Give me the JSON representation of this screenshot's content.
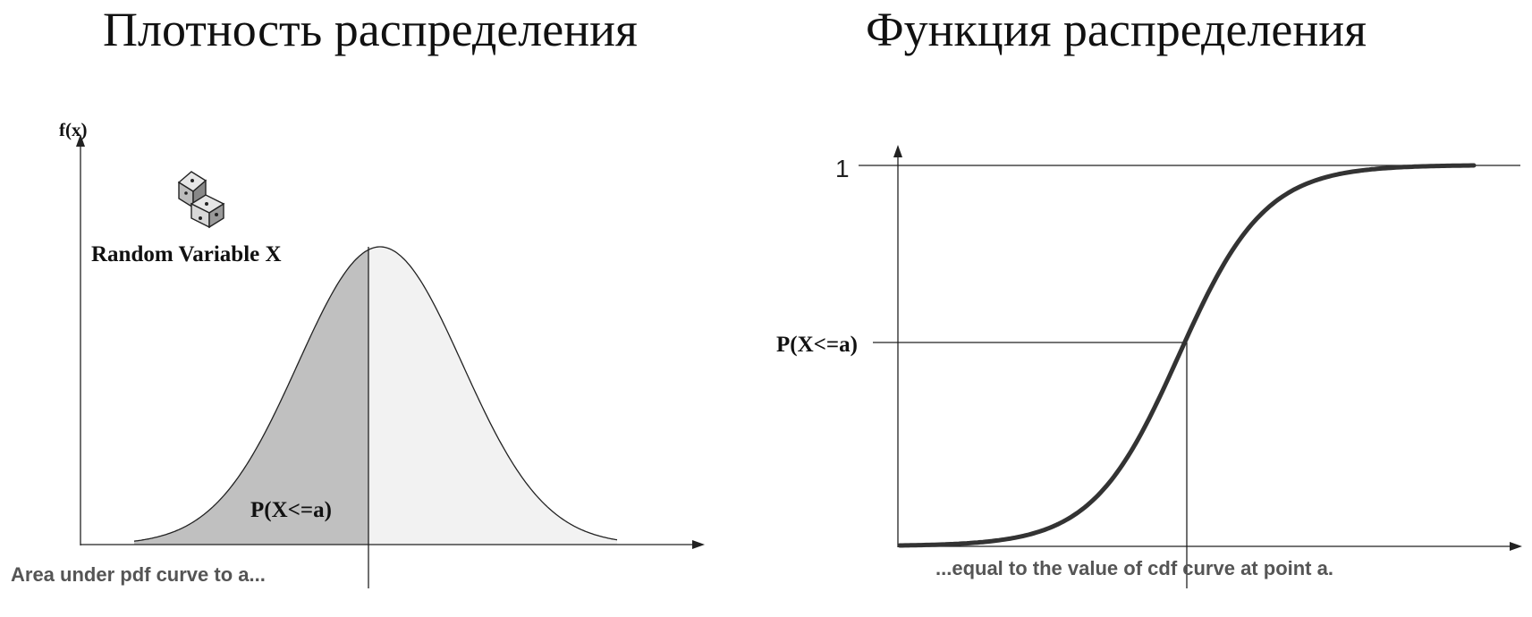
{
  "titles": {
    "left": "Плотность распределения",
    "right": "Функция распределения"
  },
  "pdf_panel": {
    "y_axis_label": "f(x)",
    "variable_label": "Random Variable X",
    "area_label": "P(X<=a)",
    "caption": "Area under pdf curve to a...",
    "icon": "dice-icon",
    "colors": {
      "shaded": "#c0c0c0",
      "unshaded": "#f2f2f2",
      "line": "#222222"
    }
  },
  "cdf_panel": {
    "y_tick_label": "1",
    "probability_label": "P(X<=a)",
    "caption": "...equal to the value of cdf curve at point a.",
    "colors": {
      "curve": "#333333",
      "line": "#222222"
    }
  }
}
